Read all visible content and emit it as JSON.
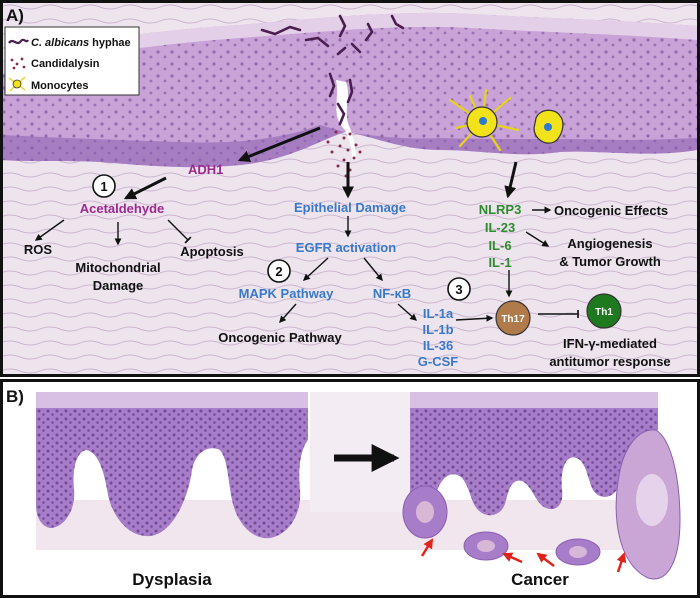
{
  "panel_a": {
    "label": "A)",
    "legend": {
      "hyphae_italic": "C. albicans",
      "hyphae_rest": " hyphae",
      "candidalysin": "Candidalysin",
      "monocytes": "Monocytes"
    },
    "steps": {
      "one": "1",
      "two": "2",
      "three": "3"
    },
    "adh1": "ADH1",
    "acetaldehyde": "Acetaldehyde",
    "ros": "ROS",
    "mito_line1": "Mitochondrial",
    "mito_line2": "Damage",
    "apoptosis": "Apoptosis",
    "epithelial_damage": "Epithelial Damage",
    "egfr": "EGFR activation",
    "mapk": "MAPK Pathway",
    "nfkb": "NF-κB",
    "oncogenic_pathway": "Oncogenic Pathway",
    "cytokines_blue": [
      "IL-1a",
      "IL-1b",
      "IL-36",
      "G-CSF"
    ],
    "cytokines_green": [
      "NLRP3",
      "IL-23",
      "IL-6",
      "IL-1"
    ],
    "oncogenic_effects": "Oncogenic Effects",
    "angio_line1": "Angiogenesis",
    "angio_line2": "& Tumor Growth",
    "th17": "Th17",
    "th1": "Th1",
    "ifn_line1": "IFN-γ-mediated",
    "ifn_line2": "antitumor response"
  },
  "panel_b": {
    "label": "B)",
    "dysplasia": "Dysplasia",
    "cancer": "Cancer"
  },
  "colors": {
    "purple_text": "#9b2a8f",
    "blue_text": "#3a78c8",
    "green_text": "#2e8b2e",
    "th17_fill": "#b07a4a",
    "th1_fill": "#1f7a1f",
    "tissue_purple": "#b88fcc",
    "stroma": "#ece2ec",
    "monocyte": "#f2e21a",
    "red_arrow": "#e0231b"
  }
}
